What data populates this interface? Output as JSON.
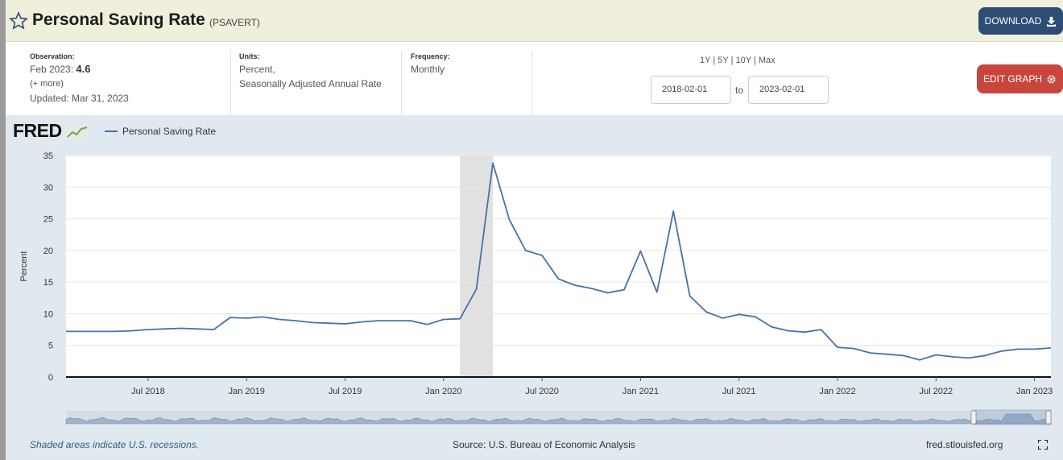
{
  "header": {
    "title": "Personal Saving Rate",
    "series_id": "(PSAVERT)",
    "download_label": "DOWNLOAD"
  },
  "meta": {
    "observation_label": "Observation:",
    "observation_date": "Feb 2023:",
    "observation_value": "4.6",
    "more": "(+ more)",
    "updated": "Updated: Mar 31, 2023",
    "units_label": "Units:",
    "units_line1": "Percent,",
    "units_line2": "Seasonally Adjusted Annual Rate",
    "frequency_label": "Frequency:",
    "frequency_value": "Monthly"
  },
  "ranges": [
    "1Y",
    "5Y",
    "10Y",
    "Max"
  ],
  "date_from": "2018-02-01",
  "date_to": "2023-02-01",
  "to_label": "to",
  "edit_label": "EDIT GRAPH",
  "logo": "FRED",
  "colors": {
    "line": "#4572a7",
    "recession": "#e1e1e1",
    "download": "#2d4d75",
    "edit": "#c9463d"
  },
  "footer": {
    "note": "Shaded areas indicate U.S. recessions.",
    "source": "Source: U.S. Bureau of Economic Analysis",
    "url": "fred.stlouisfed.org"
  },
  "chart_data": {
    "type": "line",
    "ylabel": "Percent",
    "ylim": [
      0,
      35
    ],
    "yticks": [
      0,
      5,
      10,
      15,
      20,
      25,
      30,
      35
    ],
    "xlim": [
      "2018-02",
      "2023-02"
    ],
    "xticks": [
      {
        "date": "2018-07",
        "label": "Jul 2018"
      },
      {
        "date": "2019-01",
        "label": "Jan 2019"
      },
      {
        "date": "2019-07",
        "label": "Jul 2019"
      },
      {
        "date": "2020-01",
        "label": "Jan 2020"
      },
      {
        "date": "2020-07",
        "label": "Jul 2020"
      },
      {
        "date": "2021-01",
        "label": "Jan 2021"
      },
      {
        "date": "2021-07",
        "label": "Jul 2021"
      },
      {
        "date": "2022-01",
        "label": "Jan 2022"
      },
      {
        "date": "2022-07",
        "label": "Jul 2022"
      },
      {
        "date": "2023-01",
        "label": "Jan 2023"
      }
    ],
    "recession": [
      "2020-02",
      "2020-04"
    ],
    "series": [
      {
        "name": "Personal Saving Rate",
        "x": [
          "2018-02",
          "2018-03",
          "2018-04",
          "2018-05",
          "2018-06",
          "2018-07",
          "2018-08",
          "2018-09",
          "2018-10",
          "2018-11",
          "2018-12",
          "2019-01",
          "2019-02",
          "2019-03",
          "2019-04",
          "2019-05",
          "2019-06",
          "2019-07",
          "2019-08",
          "2019-09",
          "2019-10",
          "2019-11",
          "2019-12",
          "2020-01",
          "2020-02",
          "2020-03",
          "2020-04",
          "2020-05",
          "2020-06",
          "2020-07",
          "2020-08",
          "2020-09",
          "2020-10",
          "2020-11",
          "2020-12",
          "2021-01",
          "2021-02",
          "2021-03",
          "2021-04",
          "2021-05",
          "2021-06",
          "2021-07",
          "2021-08",
          "2021-09",
          "2021-10",
          "2021-11",
          "2021-12",
          "2022-01",
          "2022-02",
          "2022-03",
          "2022-04",
          "2022-05",
          "2022-06",
          "2022-07",
          "2022-08",
          "2022-09",
          "2022-10",
          "2022-11",
          "2022-12",
          "2023-01",
          "2023-02"
        ],
        "values": [
          7.2,
          7.2,
          7.2,
          7.2,
          7.3,
          7.5,
          7.6,
          7.7,
          7.6,
          7.5,
          9.4,
          9.3,
          9.5,
          9.1,
          8.9,
          8.6,
          8.5,
          8.4,
          8.7,
          8.9,
          8.9,
          8.9,
          8.3,
          9.1,
          9.2,
          13.9,
          33.8,
          24.9,
          20.0,
          19.2,
          15.5,
          14.5,
          14.0,
          13.3,
          13.8,
          19.9,
          13.4,
          26.2,
          12.8,
          10.3,
          9.3,
          9.9,
          9.5,
          7.9,
          7.3,
          7.1,
          7.5,
          4.7,
          4.5,
          3.8,
          3.6,
          3.4,
          2.7,
          3.5,
          3.2,
          3.0,
          3.4,
          4.1,
          4.4,
          4.4,
          4.6
        ]
      }
    ]
  }
}
